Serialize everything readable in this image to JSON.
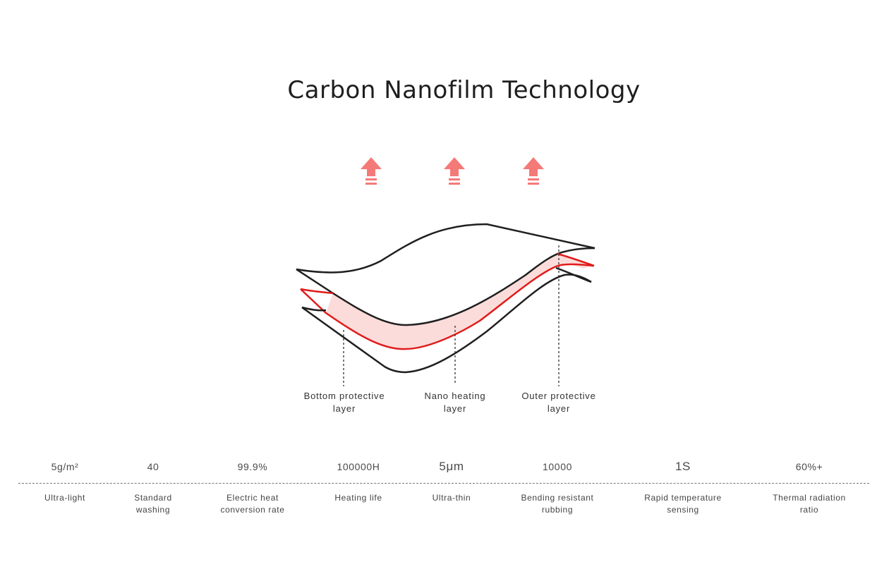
{
  "title": "Carbon Nanofilm Technology",
  "colors": {
    "heat_arrow": "#f47a78",
    "nano_layer_stroke": "#e01b1b",
    "nano_layer_fill": "#fbdcda",
    "outline": "#1f1f1f"
  },
  "diagram": {
    "arrows": [
      {
        "name": "heat-arrow-left",
        "icon": "up-arrow-icon"
      },
      {
        "name": "heat-arrow-center",
        "icon": "up-arrow-icon"
      },
      {
        "name": "heat-arrow-right",
        "icon": "up-arrow-icon"
      }
    ],
    "labels": [
      {
        "line1": "Bottom protective",
        "line2": "layer"
      },
      {
        "line1": "Nano heating",
        "line2": "layer"
      },
      {
        "line1": "Outer protective",
        "line2": "layer"
      }
    ]
  },
  "stats": [
    {
      "value": "5g/m²",
      "label1": "Ultra-light",
      "label2": ""
    },
    {
      "value": "40",
      "label1": "Standard",
      "label2": "washing"
    },
    {
      "value": "99.9%",
      "label1": "Electric heat",
      "label2": "conversion rate"
    },
    {
      "value": "100000H",
      "label1": "Heating life",
      "label2": ""
    },
    {
      "value": "5μm",
      "label1": "Ultra-thin",
      "label2": ""
    },
    {
      "value": "10000",
      "label1": "Bending resistant",
      "label2": "rubbing"
    },
    {
      "value": "1S",
      "label1": "Rapid temperature",
      "label2": "sensing"
    },
    {
      "value": "60%+",
      "label1": "Thermal radiation",
      "label2": "ratio"
    }
  ]
}
